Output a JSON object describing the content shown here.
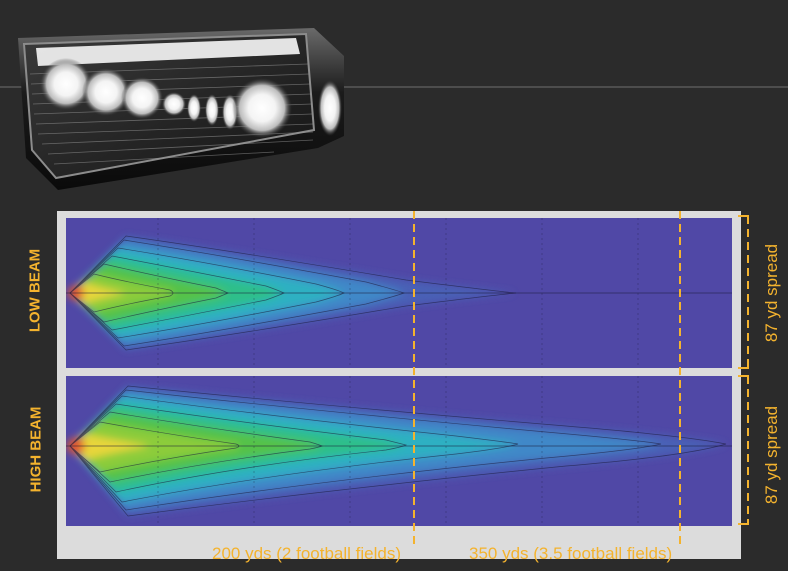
{
  "beams": {
    "low_label": "LOW BEAM",
    "high_label": "HIGH BEAM"
  },
  "spread": {
    "low_label": "87 yd spread",
    "high_label": "87 yd spread"
  },
  "distances": {
    "d200_label": "200 yds (2 football fields)",
    "d350_label": "350 yds (3.5 football fields)"
  },
  "colors": {
    "accent": "#f4b32e",
    "background": "#2b2b2b",
    "plot_background": "#5048a6",
    "frame": "#dcdcdc"
  },
  "icons": {
    "product": "led-headlight-image"
  }
}
